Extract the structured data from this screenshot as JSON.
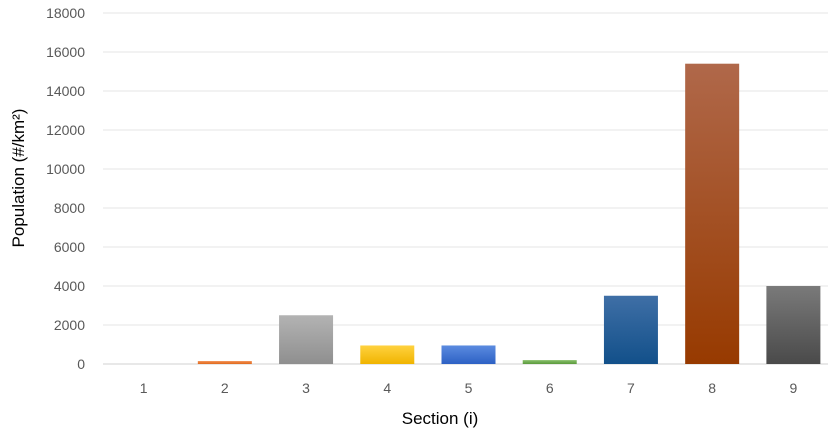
{
  "chart_data": {
    "type": "bar",
    "categories": [
      "1",
      "2",
      "3",
      "4",
      "5",
      "6",
      "7",
      "8",
      "9"
    ],
    "values": [
      0,
      150,
      2500,
      950,
      950,
      200,
      3500,
      15400,
      4000
    ],
    "xlabel": "Section (i)",
    "ylabel": "Population (#/km²)",
    "ylim": [
      0,
      18000
    ],
    "yticks": [
      0,
      2000,
      4000,
      6000,
      8000,
      10000,
      12000,
      14000,
      16000,
      18000
    ],
    "grid": true,
    "legend": "none",
    "colors": [
      {
        "top": "#f0a766",
        "bottom": "#e07b2c"
      },
      {
        "top": "#f28d4e",
        "bottom": "#e06a1e"
      },
      {
        "top": "#b3b3b3",
        "bottom": "#8f8f8f"
      },
      {
        "top": "#ffd23f",
        "bottom": "#f0b400"
      },
      {
        "top": "#5b8be0",
        "bottom": "#2d61c4"
      },
      {
        "top": "#88c06a",
        "bottom": "#5b9a3c"
      },
      {
        "top": "#3f6fa6",
        "bottom": "#12508a"
      },
      {
        "top": "#b0684a",
        "bottom": "#973a00"
      },
      {
        "top": "#7a7a7a",
        "bottom": "#4a4a4a"
      }
    ]
  }
}
